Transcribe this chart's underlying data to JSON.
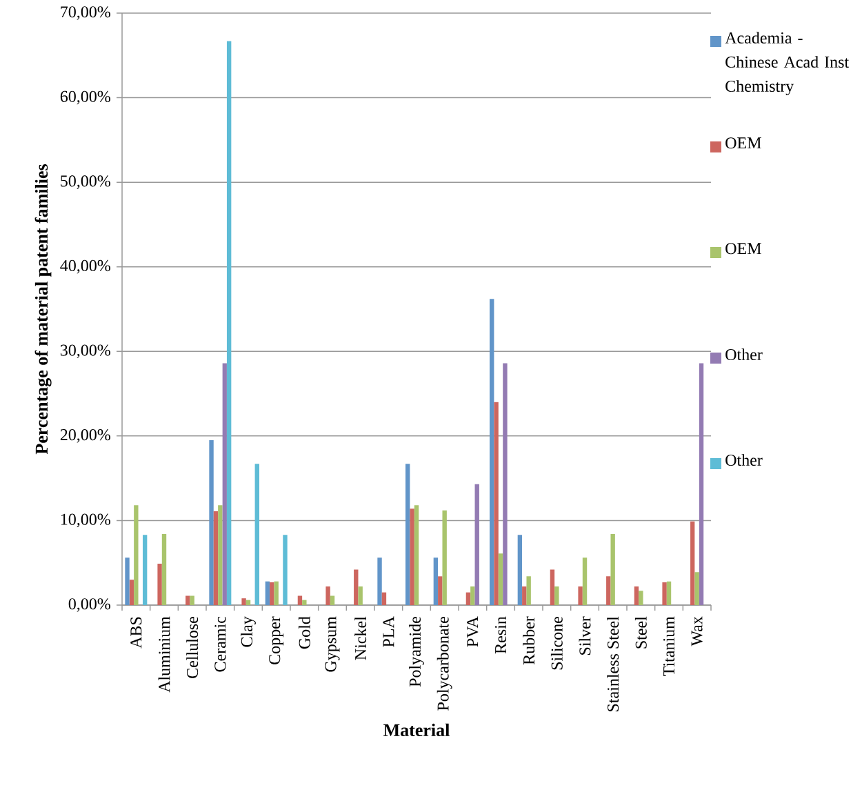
{
  "chart_data": {
    "type": "bar",
    "xlabel": "**Material**",
    "ylabel": "**Percentage of material patent families**",
    "categories": [
      "ABS",
      "Aluminium",
      "Cellulose",
      "Ceramic",
      "Clay",
      "Copper",
      "Gold",
      "Gypsum",
      "Nickel",
      "PLA",
      "Polyamide",
      "Polycarbonate",
      "PVA",
      "Resin",
      "Rubber",
      "Silicone",
      "Silver",
      "Stainless Steel",
      "Steel",
      "Titanium",
      "Wax"
    ],
    "series": [
      {
        "name": "Academia - Chinese Acad Inst Chemistry",
        "color": "#6195c9",
        "values": [
          5.6,
          null,
          null,
          19.5,
          null,
          2.8,
          null,
          null,
          null,
          5.6,
          16.7,
          5.6,
          null,
          36.2,
          8.3,
          null,
          null,
          null,
          null,
          null,
          null
        ]
      },
      {
        "name": "OEM",
        "color": "#cd665f",
        "values": [
          3.0,
          4.9,
          1.1,
          11.1,
          0.8,
          2.7,
          1.1,
          2.2,
          4.2,
          1.5,
          11.4,
          3.4,
          1.5,
          24.0,
          2.2,
          4.2,
          2.2,
          3.4,
          2.2,
          2.7,
          9.9
        ]
      },
      {
        "name": "OEM",
        "color": "#a9c46c",
        "values": [
          11.8,
          8.4,
          1.1,
          11.8,
          0.6,
          2.8,
          0.6,
          1.1,
          2.2,
          null,
          11.8,
          11.2,
          2.2,
          6.1,
          3.4,
          2.2,
          5.6,
          8.4,
          1.7,
          2.8,
          3.9
        ]
      },
      {
        "name": "Other",
        "color": "#937bb3",
        "values": [
          null,
          null,
          null,
          28.6,
          null,
          null,
          null,
          null,
          null,
          null,
          null,
          null,
          14.3,
          28.6,
          null,
          null,
          null,
          null,
          null,
          null,
          28.6
        ]
      },
      {
        "name": "Other",
        "color": "#5ebcd6",
        "values": [
          8.3,
          null,
          null,
          66.7,
          16.7,
          8.3,
          null,
          null,
          null,
          null,
          null,
          null,
          null,
          null,
          null,
          null,
          null,
          null,
          null,
          null,
          null
        ]
      }
    ],
    "ylim": [
      0,
      70
    ],
    "yticks": [
      {
        "value": 0,
        "label": "0,00%"
      },
      {
        "value": 10,
        "label": "10,00%"
      },
      {
        "value": 20,
        "label": "20,00%"
      },
      {
        "value": 30,
        "label": "30,00%"
      },
      {
        "value": 40,
        "label": "40,00%"
      },
      {
        "value": 50,
        "label": "50,00%"
      },
      {
        "value": 60,
        "label": "60,00%"
      },
      {
        "value": 70,
        "label": "70,00%"
      }
    ],
    "grid": "y",
    "legend": "right"
  }
}
